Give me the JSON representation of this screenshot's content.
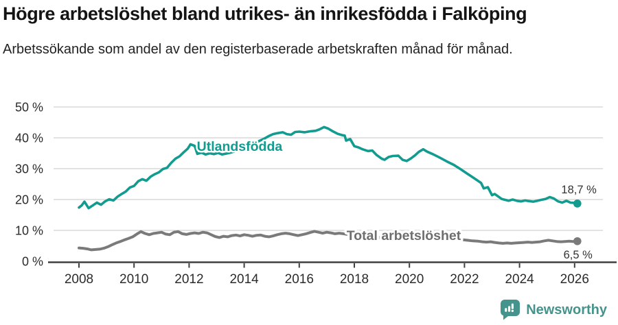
{
  "header": {
    "title": "Högre arbetslöshet bland utrikes- än inrikesfödda i Falköping",
    "subtitle": "Arbetssökande som andel av den registerbaserade arbetskraften månad för månad."
  },
  "footer": {
    "brand": "Newsworthy",
    "logo_icon": "bar-chart-speech-bubble-icon"
  },
  "colors": {
    "teal_line": "#129B8F",
    "gray_line": "#7A7A7A",
    "gray_label": "#6E6E6E",
    "grid": "#D9D9D9",
    "axis": "#3F3F3F",
    "axis_text": "#2B2B2B",
    "annotation_text": "#333333",
    "logo_teal": "#44948D"
  },
  "chart_data": {
    "type": "line",
    "title": "Högre arbetslöshet bland utrikes- än inrikesfödda i Falköping",
    "subtitle": "Arbetssökande som andel av den registerbaserade arbetskraften månad för månad.",
    "grid": true,
    "x_axis": {
      "min": 2008,
      "max": 2026.1,
      "ticks": [
        {
          "value": 2008,
          "label": "2008"
        },
        {
          "value": 2010,
          "label": "2010"
        },
        {
          "value": 2012,
          "label": "2012"
        },
        {
          "value": 2014,
          "label": "2014"
        },
        {
          "value": 2016,
          "label": "2016"
        },
        {
          "value": 2018,
          "label": "2018"
        },
        {
          "value": 2020,
          "label": "2020"
        },
        {
          "value": 2022,
          "label": "2022"
        },
        {
          "value": 2024,
          "label": "2024"
        },
        {
          "value": 2026,
          "label": "2026"
        }
      ]
    },
    "y_axis": {
      "min": 0,
      "max": 50,
      "unit": "%",
      "ticks": [
        {
          "value": 0,
          "label": "0 %"
        },
        {
          "value": 10,
          "label": "10 %"
        },
        {
          "value": 20,
          "label": "20 %"
        },
        {
          "value": 30,
          "label": "30 %"
        },
        {
          "value": 40,
          "label": "40 %"
        },
        {
          "value": 50,
          "label": "50 %"
        }
      ]
    },
    "series": [
      {
        "id": "total",
        "name": "Total arbetslöshet",
        "color": "#7A7A7A",
        "label_color": "#6E6E6E",
        "end_label": "6,5 %",
        "end_value": 6.5,
        "label_anchor": {
          "year": 2017.72,
          "value": 6.9
        },
        "points": [
          [
            2008.0,
            4.3
          ],
          [
            2008.15,
            4.2
          ],
          [
            2008.3,
            4.0
          ],
          [
            2008.45,
            3.7
          ],
          [
            2008.6,
            3.8
          ],
          [
            2008.75,
            3.9
          ],
          [
            2008.9,
            4.2
          ],
          [
            2009.05,
            4.7
          ],
          [
            2009.2,
            5.3
          ],
          [
            2009.35,
            5.9
          ],
          [
            2009.5,
            6.4
          ],
          [
            2009.65,
            6.9
          ],
          [
            2009.8,
            7.4
          ],
          [
            2009.95,
            7.9
          ],
          [
            2010.1,
            8.8
          ],
          [
            2010.25,
            9.6
          ],
          [
            2010.4,
            9.0
          ],
          [
            2010.55,
            8.6
          ],
          [
            2010.7,
            9.0
          ],
          [
            2010.85,
            9.2
          ],
          [
            2011.0,
            9.4
          ],
          [
            2011.15,
            8.8
          ],
          [
            2011.3,
            8.6
          ],
          [
            2011.45,
            9.4
          ],
          [
            2011.6,
            9.6
          ],
          [
            2011.75,
            8.9
          ],
          [
            2011.9,
            8.7
          ],
          [
            2012.05,
            9.0
          ],
          [
            2012.2,
            9.2
          ],
          [
            2012.35,
            9.0
          ],
          [
            2012.5,
            9.4
          ],
          [
            2012.65,
            9.2
          ],
          [
            2012.8,
            8.6
          ],
          [
            2012.95,
            8.0
          ],
          [
            2013.1,
            7.7
          ],
          [
            2013.25,
            8.1
          ],
          [
            2013.4,
            7.9
          ],
          [
            2013.55,
            8.3
          ],
          [
            2013.7,
            8.5
          ],
          [
            2013.85,
            8.2
          ],
          [
            2014.0,
            8.6
          ],
          [
            2014.15,
            8.4
          ],
          [
            2014.3,
            8.1
          ],
          [
            2014.45,
            8.4
          ],
          [
            2014.6,
            8.5
          ],
          [
            2014.75,
            8.1
          ],
          [
            2014.9,
            7.9
          ],
          [
            2015.05,
            8.2
          ],
          [
            2015.2,
            8.6
          ],
          [
            2015.35,
            8.9
          ],
          [
            2015.5,
            9.1
          ],
          [
            2015.65,
            8.9
          ],
          [
            2015.8,
            8.6
          ],
          [
            2015.95,
            8.3
          ],
          [
            2016.1,
            8.6
          ],
          [
            2016.25,
            8.9
          ],
          [
            2016.4,
            9.3
          ],
          [
            2016.55,
            9.7
          ],
          [
            2016.7,
            9.4
          ],
          [
            2016.85,
            9.1
          ],
          [
            2017.0,
            9.4
          ],
          [
            2017.15,
            9.2
          ],
          [
            2017.3,
            8.9
          ],
          [
            2017.45,
            9.1
          ],
          [
            2017.6,
            8.9
          ],
          [
            2017.75,
            8.7
          ],
          [
            2017.9,
            8.5
          ],
          [
            2018.1,
            8.3
          ],
          [
            2018.3,
            8.1
          ],
          [
            2018.5,
            7.9
          ],
          [
            2018.7,
            7.8
          ],
          [
            2018.9,
            7.7
          ],
          [
            2019.1,
            7.6
          ],
          [
            2019.3,
            7.5
          ],
          [
            2019.5,
            7.4
          ],
          [
            2019.7,
            7.5
          ],
          [
            2019.9,
            7.7
          ],
          [
            2020.1,
            8.1
          ],
          [
            2020.3,
            8.6
          ],
          [
            2020.5,
            8.9
          ],
          [
            2020.7,
            8.7
          ],
          [
            2020.9,
            8.4
          ],
          [
            2021.1,
            8.1
          ],
          [
            2021.3,
            7.8
          ],
          [
            2021.5,
            7.5
          ],
          [
            2021.7,
            7.2
          ],
          [
            2021.9,
            7.0
          ],
          [
            2022.1,
            6.8
          ],
          [
            2022.3,
            6.6
          ],
          [
            2022.5,
            6.5
          ],
          [
            2022.65,
            6.3
          ],
          [
            2022.8,
            6.2
          ],
          [
            2022.95,
            6.3
          ],
          [
            2023.1,
            6.1
          ],
          [
            2023.25,
            5.9
          ],
          [
            2023.4,
            5.8
          ],
          [
            2023.55,
            5.9
          ],
          [
            2023.7,
            5.8
          ],
          [
            2023.85,
            5.9
          ],
          [
            2024.0,
            6.0
          ],
          [
            2024.15,
            6.1
          ],
          [
            2024.3,
            6.2
          ],
          [
            2024.45,
            6.1
          ],
          [
            2024.6,
            6.2
          ],
          [
            2024.75,
            6.3
          ],
          [
            2024.9,
            6.6
          ],
          [
            2025.05,
            6.8
          ],
          [
            2025.2,
            6.6
          ],
          [
            2025.35,
            6.4
          ],
          [
            2025.5,
            6.3
          ],
          [
            2025.65,
            6.4
          ],
          [
            2025.8,
            6.5
          ],
          [
            2025.95,
            6.4
          ],
          [
            2026.1,
            6.5
          ]
        ]
      },
      {
        "id": "utlandsfodda",
        "name": "Utlandsfödda",
        "color": "#129B8F",
        "label_color": "#129B8F",
        "end_label": "18,7 %",
        "end_value": 18.7,
        "label_anchor": {
          "year": 2012.28,
          "value": 35.8
        },
        "points": [
          [
            2008.0,
            17.4
          ],
          [
            2008.1,
            18.1
          ],
          [
            2008.2,
            19.3
          ],
          [
            2008.35,
            17.2
          ],
          [
            2008.5,
            18.1
          ],
          [
            2008.65,
            19.0
          ],
          [
            2008.8,
            18.3
          ],
          [
            2008.95,
            19.4
          ],
          [
            2009.1,
            20.1
          ],
          [
            2009.25,
            19.7
          ],
          [
            2009.4,
            20.9
          ],
          [
            2009.55,
            21.8
          ],
          [
            2009.7,
            22.6
          ],
          [
            2009.85,
            23.9
          ],
          [
            2010.0,
            24.4
          ],
          [
            2010.15,
            25.9
          ],
          [
            2010.3,
            26.6
          ],
          [
            2010.45,
            26.1
          ],
          [
            2010.6,
            27.4
          ],
          [
            2010.75,
            28.2
          ],
          [
            2010.9,
            28.8
          ],
          [
            2011.05,
            29.9
          ],
          [
            2011.2,
            30.3
          ],
          [
            2011.35,
            31.9
          ],
          [
            2011.5,
            33.2
          ],
          [
            2011.65,
            34.0
          ],
          [
            2011.8,
            35.3
          ],
          [
            2011.95,
            36.5
          ],
          [
            2012.05,
            37.9
          ],
          [
            2012.2,
            37.4
          ],
          [
            2012.3,
            34.8
          ],
          [
            2012.45,
            35.2
          ],
          [
            2012.6,
            34.6
          ],
          [
            2012.75,
            35.0
          ],
          [
            2012.9,
            34.7
          ],
          [
            2013.05,
            35.1
          ],
          [
            2013.2,
            34.6
          ],
          [
            2013.35,
            34.9
          ],
          [
            2013.5,
            35.2
          ],
          [
            2013.65,
            35.6
          ],
          [
            2013.9,
            36.3
          ],
          [
            2014.1,
            37.2
          ],
          [
            2014.3,
            38.0
          ],
          [
            2014.5,
            38.8
          ],
          [
            2014.7,
            39.6
          ],
          [
            2014.9,
            40.6
          ],
          [
            2015.05,
            41.2
          ],
          [
            2015.2,
            41.5
          ],
          [
            2015.4,
            41.8
          ],
          [
            2015.55,
            41.2
          ],
          [
            2015.7,
            41.0
          ],
          [
            2015.85,
            41.9
          ],
          [
            2016.0,
            42.0
          ],
          [
            2016.2,
            41.8
          ],
          [
            2016.4,
            42.1
          ],
          [
            2016.6,
            42.3
          ],
          [
            2016.75,
            42.8
          ],
          [
            2016.9,
            43.5
          ],
          [
            2017.05,
            43.0
          ],
          [
            2017.2,
            42.2
          ],
          [
            2017.4,
            41.3
          ],
          [
            2017.55,
            40.9
          ],
          [
            2017.65,
            40.7
          ],
          [
            2017.7,
            39.1
          ],
          [
            2017.85,
            39.6
          ],
          [
            2018.0,
            37.3
          ],
          [
            2018.15,
            36.9
          ],
          [
            2018.3,
            36.3
          ],
          [
            2018.5,
            35.7
          ],
          [
            2018.65,
            35.9
          ],
          [
            2018.8,
            34.5
          ],
          [
            2019.0,
            33.2
          ],
          [
            2019.1,
            32.9
          ],
          [
            2019.25,
            33.8
          ],
          [
            2019.4,
            34.1
          ],
          [
            2019.6,
            34.2
          ],
          [
            2019.75,
            32.9
          ],
          [
            2019.9,
            32.5
          ],
          [
            2020.05,
            33.3
          ],
          [
            2020.2,
            34.3
          ],
          [
            2020.35,
            35.5
          ],
          [
            2020.5,
            36.3
          ],
          [
            2020.65,
            35.5
          ],
          [
            2020.85,
            34.7
          ],
          [
            2021.1,
            33.6
          ],
          [
            2021.35,
            32.4
          ],
          [
            2021.6,
            31.3
          ],
          [
            2021.85,
            29.9
          ],
          [
            2022.1,
            28.4
          ],
          [
            2022.35,
            26.9
          ],
          [
            2022.6,
            25.4
          ],
          [
            2022.7,
            23.6
          ],
          [
            2022.85,
            24.0
          ],
          [
            2023.0,
            21.4
          ],
          [
            2023.1,
            21.8
          ],
          [
            2023.35,
            20.2
          ],
          [
            2023.6,
            19.6
          ],
          [
            2023.75,
            20.0
          ],
          [
            2023.9,
            19.6
          ],
          [
            2024.05,
            19.4
          ],
          [
            2024.2,
            19.7
          ],
          [
            2024.35,
            19.5
          ],
          [
            2024.5,
            19.3
          ],
          [
            2024.65,
            19.6
          ],
          [
            2024.8,
            19.9
          ],
          [
            2024.95,
            20.2
          ],
          [
            2025.1,
            20.8
          ],
          [
            2025.25,
            20.3
          ],
          [
            2025.4,
            19.4
          ],
          [
            2025.55,
            19.0
          ],
          [
            2025.7,
            19.6
          ],
          [
            2025.85,
            19.0
          ],
          [
            2026.0,
            18.9
          ],
          [
            2026.1,
            18.7
          ]
        ]
      }
    ]
  }
}
